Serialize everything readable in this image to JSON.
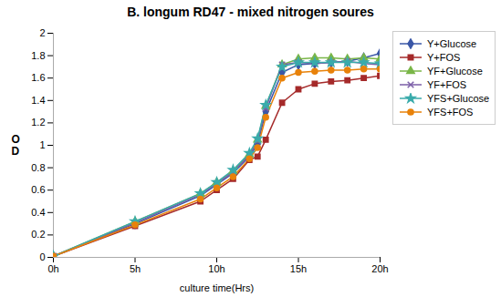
{
  "chart_data": {
    "type": "line",
    "title": "B. longum RD47  - mixed nitrogen soures",
    "xlabel": "culture time(Hrs)",
    "ylabel": "O\nD",
    "x": [
      0,
      5,
      9,
      10,
      11,
      12,
      12.5,
      13,
      14,
      15,
      16,
      17,
      18,
      19,
      20
    ],
    "xlim": [
      0,
      20
    ],
    "xticks": [
      {
        "value": 0,
        "label": "0h"
      },
      {
        "value": 5,
        "label": "5h"
      },
      {
        "value": 10,
        "label": "10h"
      },
      {
        "value": 15,
        "label": "15h"
      },
      {
        "value": 20,
        "label": "20h"
      }
    ],
    "ylim": [
      0,
      2
    ],
    "yticks": [
      0,
      0.2,
      0.4,
      0.6,
      0.8,
      1,
      1.2,
      1.4,
      1.6,
      1.8,
      2
    ],
    "grid": false,
    "legend": "right",
    "series": [
      {
        "name": "Y+Glucose",
        "color": "#3A57A7",
        "marker": "diamond",
        "values": [
          0.01,
          0.3,
          0.55,
          0.65,
          0.75,
          0.9,
          1.01,
          1.3,
          1.65,
          1.72,
          1.73,
          1.74,
          1.75,
          1.78,
          1.82
        ]
      },
      {
        "name": "Y+FOS",
        "color": "#A52A2A",
        "marker": "square",
        "values": [
          0.01,
          0.28,
          0.5,
          0.6,
          0.7,
          0.87,
          0.9,
          1.05,
          1.38,
          1.5,
          1.55,
          1.57,
          1.58,
          1.6,
          1.62
        ]
      },
      {
        "name": "YF+Glucose",
        "color": "#7AB648",
        "marker": "triangle",
        "values": [
          0.01,
          0.32,
          0.57,
          0.67,
          0.77,
          0.92,
          1.05,
          1.35,
          1.72,
          1.77,
          1.78,
          1.78,
          1.77,
          1.78,
          1.77
        ]
      },
      {
        "name": "YF+FOS",
        "color": "#7B5EA7",
        "marker": "times",
        "values": [
          0.01,
          0.31,
          0.56,
          0.66,
          0.76,
          0.91,
          1.04,
          1.33,
          1.72,
          1.74,
          1.73,
          1.74,
          1.75,
          1.73,
          1.72
        ]
      },
      {
        "name": "YFS+Glucose",
        "color": "#3AABAB",
        "marker": "star",
        "values": [
          0.01,
          0.32,
          0.57,
          0.67,
          0.78,
          0.93,
          1.06,
          1.36,
          1.7,
          1.74,
          1.74,
          1.74,
          1.74,
          1.74,
          1.73
        ]
      },
      {
        "name": "YFS+FOS",
        "color": "#E8820A",
        "marker": "circle",
        "values": [
          0.01,
          0.29,
          0.52,
          0.62,
          0.72,
          0.88,
          0.98,
          1.25,
          1.6,
          1.65,
          1.66,
          1.67,
          1.67,
          1.68,
          1.68
        ]
      }
    ]
  }
}
